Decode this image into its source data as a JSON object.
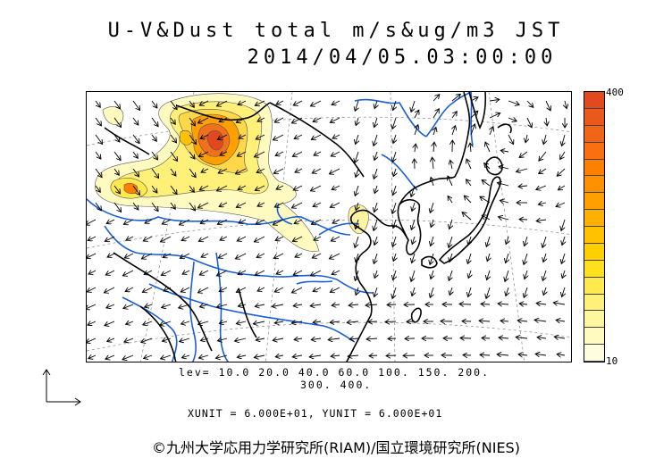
{
  "title": {
    "line1": "U-V&Dust total m/s&ug/m3 JST",
    "line2": "2014/04/05.03:00:00"
  },
  "legend": {
    "max_label": "400",
    "min_label": "10",
    "colors": [
      "#fffde0",
      "#fffbc0",
      "#fff7a0",
      "#fff07a",
      "#ffe94d",
      "#ffe01f",
      "#ffd000",
      "#ffc100",
      "#ffb000",
      "#ffa000",
      "#ff9000",
      "#ff8000",
      "#fa7010",
      "#f26418",
      "#ea581c",
      "#e24a1e"
    ]
  },
  "levels": {
    "line1": "lev=  10.0  20.0  40.0  60.0  100.  150.  200.",
    "line2": "300.  400."
  },
  "units": "XUNIT = 6.000E+01, YUNIT = 6.000E+01",
  "credit": "©九州大学応用力学研究所(RIAM)/国立環境研究所(NIES)",
  "colors": {
    "coast": "#000000",
    "river": "#1a5fd8",
    "grid": "#777777",
    "dust_low": "#fffbc0",
    "dust_mid": "#ffd84a",
    "dust_high": "#f0701c",
    "dust_peak": "#e2481e"
  }
}
